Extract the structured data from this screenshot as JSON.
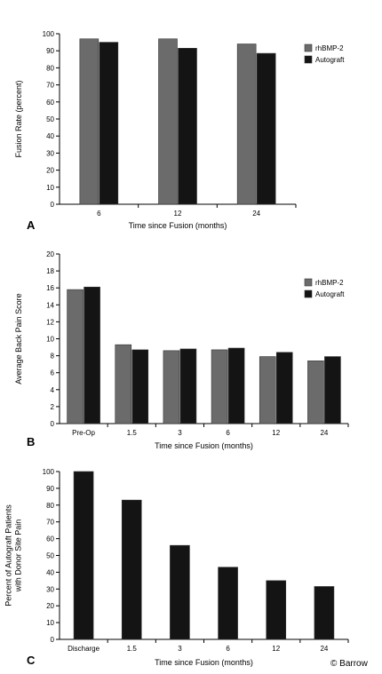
{
  "colors": {
    "rhbmp2": "#6b6b6b",
    "autograft": "#141414",
    "axis": "#000000",
    "bar_stroke": "#333333"
  },
  "copyright": "© Barrow",
  "chart_data": [
    {
      "panel": "A",
      "type": "bar",
      "xlabel": "Time since Fusion (months)",
      "ylabel": "Fusion Rate (percent)",
      "ylim": [
        0,
        100
      ],
      "ytick_step": 10,
      "grid": false,
      "legend": "right",
      "categories": [
        "6",
        "12",
        "24"
      ],
      "series": [
        {
          "name": "rhBMP-2",
          "color_key": "rhbmp2",
          "values": [
            97,
            97,
            94
          ]
        },
        {
          "name": "Autograft",
          "color_key": "autograft",
          "values": [
            95,
            91.5,
            88.5
          ]
        }
      ]
    },
    {
      "panel": "B",
      "type": "bar",
      "xlabel": "Time since Fusion (months)",
      "ylabel": "Average Back Pain Score",
      "ylim": [
        0,
        20
      ],
      "ytick_step": 2,
      "grid": false,
      "legend": "right",
      "categories": [
        "Pre-Op",
        "1.5",
        "3",
        "6",
        "12",
        "24"
      ],
      "series": [
        {
          "name": "rhBMP-2",
          "color_key": "rhbmp2",
          "values": [
            15.8,
            9.3,
            8.6,
            8.7,
            7.9,
            7.4
          ]
        },
        {
          "name": "Autograft",
          "color_key": "autograft",
          "values": [
            16.1,
            8.7,
            8.8,
            8.9,
            8.4,
            7.9
          ]
        }
      ]
    },
    {
      "panel": "C",
      "type": "bar",
      "xlabel": "Time since Fusion (months)",
      "ylabel": "Percent of Autograft Patients\nwith Donor Site Pain",
      "ylim": [
        0,
        100
      ],
      "ytick_step": 10,
      "grid": false,
      "legend": "none",
      "categories": [
        "Discharge",
        "1.5",
        "3",
        "6",
        "12",
        "24"
      ],
      "series": [
        {
          "name": "",
          "color_key": "autograft",
          "values": [
            100,
            83,
            56,
            43,
            35,
            31.5
          ]
        }
      ]
    }
  ]
}
